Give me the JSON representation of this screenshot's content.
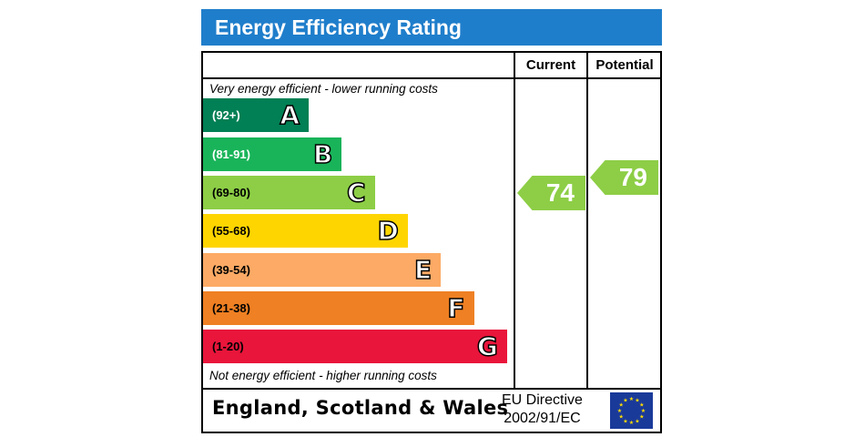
{
  "title": "Energy Efficiency Rating",
  "columns": {
    "current": "Current",
    "potential": "Potential"
  },
  "top_note": "Very energy efficient - lower running costs",
  "bottom_note": "Not energy efficient - higher running costs",
  "footer": {
    "region": "England, Scotland & Wales",
    "directive_line1": "EU Directive",
    "directive_line2": "2002/91/EC"
  },
  "chart_data": {
    "type": "bar",
    "categories": [
      "A",
      "B",
      "C",
      "D",
      "E",
      "F",
      "G"
    ],
    "ranges": [
      "(92+)",
      "(81-91)",
      "(69-80)",
      "(55-68)",
      "(39-54)",
      "(21-38)",
      "(1-20)"
    ],
    "colors": [
      "#008054",
      "#19b459",
      "#8dce46",
      "#ffd500",
      "#fcaa65",
      "#ef8023",
      "#e9153b"
    ],
    "current": {
      "value": "74",
      "band": "C",
      "color": "#8dce46"
    },
    "potential": {
      "value": "79",
      "band": "C",
      "color": "#8dce46"
    }
  }
}
